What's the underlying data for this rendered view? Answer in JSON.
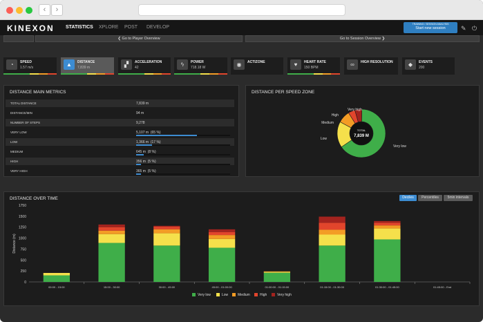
{
  "app": {
    "logo": "KINEXON",
    "menu": [
      {
        "label": "STATISTICS",
        "active": true
      },
      {
        "label": "XPLORE",
        "active": false
      },
      {
        "label": "POST",
        "active": false
      },
      {
        "label": "DEVELOP",
        "active": false
      }
    ],
    "session_sub": "TRAINING / SESSION ANALYSIS",
    "session_button": "Start new session",
    "wrench_icon": "wrench-icon",
    "power_icon": "power-icon"
  },
  "subnav": {
    "player_overview": "❮ Go to Player Overview",
    "session_overview": "Go to Session Overview ❯"
  },
  "metrics_tiles": [
    {
      "name": "speed",
      "label": "SPEED",
      "value": "1.57 m/s",
      "icon": "gauge-icon",
      "glyph": "◔",
      "active": false,
      "bar": true
    },
    {
      "name": "distance",
      "label": "DISTANCE",
      "value": "7,839 m",
      "icon": "road-icon",
      "glyph": "▲",
      "active": true,
      "bar": true
    },
    {
      "name": "acceleration",
      "label": "ACCELERATION",
      "value": "42",
      "icon": "car-icon",
      "glyph": "▞",
      "active": false,
      "bar": true
    },
    {
      "name": "power",
      "label": "POWER",
      "value": "718.18 W",
      "icon": "bolt-icon",
      "glyph": "ϟ",
      "active": false,
      "bar": true
    },
    {
      "name": "actizone",
      "label": "ACTIZONE",
      "value": "",
      "icon": "target-icon",
      "glyph": "◉",
      "active": false,
      "bar": false
    },
    {
      "name": "heart-rate",
      "label": "HEART RATE",
      "value": "150 BPM",
      "icon": "heart-icon",
      "glyph": "♥",
      "active": false,
      "bar": true
    },
    {
      "name": "high-resolution",
      "label": "HIGH RESOLUTION",
      "value": "",
      "icon": "binoculars-icon",
      "glyph": "∞",
      "active": false,
      "bar": false
    },
    {
      "name": "events",
      "label": "EVENTS",
      "value": "200",
      "icon": "tag-icon",
      "glyph": "◆",
      "active": false,
      "bar": false
    }
  ],
  "main_metrics": {
    "title": "DISTANCE MAIN METRICS",
    "rows": [
      {
        "label": "TOTAL DISTANCE",
        "value": "7,839 m",
        "fraction": null
      },
      {
        "label": "DISTANCE/MIN",
        "value": "94 m",
        "fraction": null
      },
      {
        "label": "NUMBER OF STEPS",
        "value": "9,278",
        "fraction": null
      },
      {
        "label": "VERY LOW",
        "value": "5,107 m",
        "pct": "(65 %)",
        "fraction": 0.65
      },
      {
        "label": "LOW",
        "value": "1,366 m",
        "pct": "(17 %)",
        "fraction": 0.17
      },
      {
        "label": "MEDIUM",
        "value": "645 m",
        "pct": "(8 %)",
        "fraction": 0.08
      },
      {
        "label": "HIGH",
        "value": "356 m",
        "pct": "(5 %)",
        "fraction": 0.05
      },
      {
        "label": "VERY HIGH",
        "value": "365 m",
        "pct": "(5 %)",
        "fraction": 0.05
      }
    ]
  },
  "speed_zone": {
    "title": "DISTANCE PER SPEED ZONE",
    "center_label": "TOTAL",
    "center_value": "7,839 M",
    "slices": [
      {
        "name": "Very low",
        "value": 5107,
        "color": "#3fae49"
      },
      {
        "name": "Low",
        "value": 1366,
        "color": "#f5e04b"
      },
      {
        "name": "Medium",
        "value": 645,
        "color": "#f39c25"
      },
      {
        "name": "High",
        "value": 356,
        "color": "#e2452c"
      },
      {
        "name": "Very high",
        "value": 365,
        "color": "#a3231e"
      }
    ]
  },
  "over_time": {
    "title": "DISTANCE OVER TIME",
    "buttons": [
      {
        "label": "Deciles",
        "active": true
      },
      {
        "label": "Percentiles",
        "active": false
      },
      {
        "label": "5min intervals",
        "active": false
      }
    ]
  },
  "chart_data": {
    "type": "bar",
    "stacked": true,
    "ylabel": "Distance (m)",
    "ylim": [
      0,
      1750
    ],
    "yticks": [
      0,
      250,
      500,
      750,
      1000,
      1250,
      1500,
      1750
    ],
    "categories": [
      "00:00 - 15:00",
      "15:00 - 30:00",
      "30:00 - 45:00",
      "45:00 - 01:00:00",
      "01:00:00 - 01:15:00",
      "01:15:00 - 01:30:00",
      "01:30:00 - 01:45:00",
      "01:45:00 - End"
    ],
    "series": [
      {
        "name": "Very low",
        "color": "#3fae49",
        "values": [
          150,
          890,
          830,
          780,
          210,
          830,
          970,
          0
        ]
      },
      {
        "name": "Low",
        "color": "#f5e04b",
        "values": [
          55,
          200,
          280,
          200,
          20,
          250,
          250,
          0
        ]
      },
      {
        "name": "Medium",
        "color": "#f39c25",
        "values": [
          0,
          80,
          90,
          90,
          10,
          110,
          70,
          0
        ]
      },
      {
        "name": "High",
        "color": "#e2452c",
        "values": [
          0,
          80,
          60,
          70,
          0,
          160,
          60,
          0
        ]
      },
      {
        "name": "Very high",
        "color": "#a3231e",
        "values": [
          0,
          60,
          20,
          60,
          0,
          140,
          40,
          0
        ]
      }
    ],
    "legend_position": "bottom"
  },
  "colors": {
    "accent": "#3c8cd2",
    "very_low": "#3fae49",
    "low": "#f5e04b",
    "medium": "#f39c25",
    "high": "#e2452c",
    "very_high": "#a3231e"
  }
}
